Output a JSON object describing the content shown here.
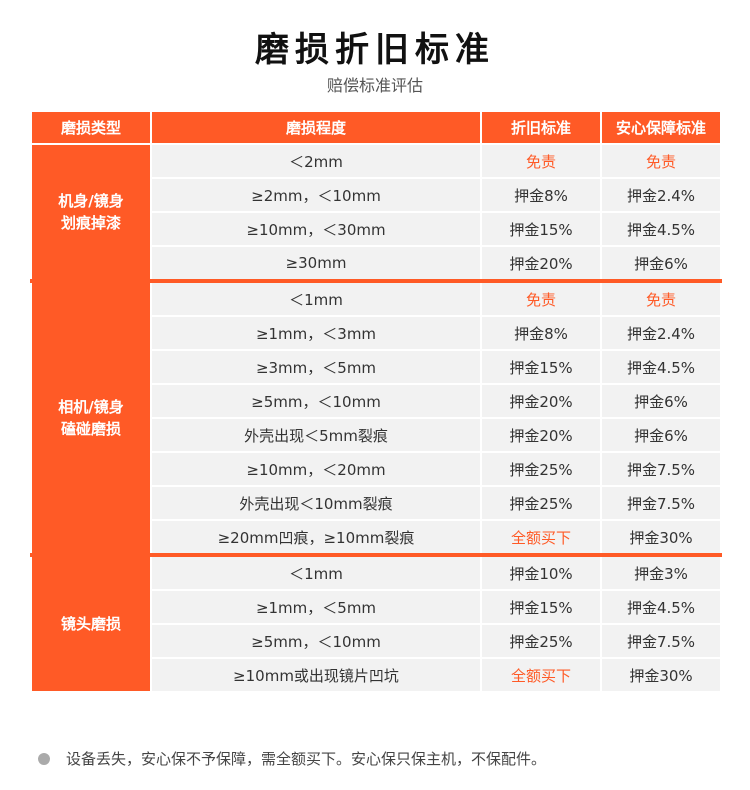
{
  "header": {
    "title": "磨损折旧标准",
    "subtitle": "赔偿标准评估"
  },
  "table": {
    "header_color": "#ff5a26",
    "columns": [
      "磨损类型",
      "磨损程度",
      "折旧标准",
      "安心保障标准"
    ],
    "groups": [
      {
        "type": [
          "机身/镜身",
          "划痕掉漆"
        ],
        "rows": [
          [
            "＜2mm",
            {
              "text": "免责",
              "color": "#ff5a26"
            },
            {
              "text": "免责",
              "color": "#ff5a26"
            }
          ],
          [
            "≥2mm，＜10mm",
            "押金8%",
            "押金2.4%"
          ],
          [
            "≥10mm，＜30mm",
            "押金15%",
            "押金4.5%"
          ],
          [
            "≥30mm",
            "押金20%",
            "押金6%"
          ]
        ]
      },
      {
        "type": [
          "相机/镜身",
          "磕碰磨损"
        ],
        "rows": [
          [
            "＜1mm",
            {
              "text": "免责",
              "color": "#ff5a26"
            },
            {
              "text": "免责",
              "color": "#ff5a26"
            }
          ],
          [
            "≥1mm，＜3mm",
            "押金8%",
            "押金2.4%"
          ],
          [
            "≥3mm，＜5mm",
            "押金15%",
            "押金4.5%"
          ],
          [
            "≥5mm，＜10mm",
            "押金20%",
            "押金6%"
          ],
          [
            "外壳出现＜5mm裂痕",
            "押金20%",
            "押金6%"
          ],
          [
            "≥10mm，＜20mm",
            "押金25%",
            "押金7.5%"
          ],
          [
            "外壳出现＜10mm裂痕",
            "押金25%",
            "押金7.5%"
          ],
          [
            "≥20mm凹痕，≥10mm裂痕",
            {
              "text": "全额买下",
              "color": "#ff5a26"
            },
            "押金30%"
          ]
        ]
      },
      {
        "type": [
          "镜头磨损"
        ],
        "rows": [
          [
            "＜1mm",
            "押金10%",
            "押金3%"
          ],
          [
            "≥1mm，＜5mm",
            "押金15%",
            "押金4.5%"
          ],
          [
            "≥5mm，＜10mm",
            "押金25%",
            "押金7.5%"
          ],
          [
            "≥10mm或出现镜片凹坑",
            {
              "text": "全额买下",
              "color": "#ff5a26"
            },
            "押金30%"
          ]
        ]
      }
    ]
  },
  "footnote": "设备丢失，安心保不予保障，需全额买下。安心保只保主机，不保配件。"
}
